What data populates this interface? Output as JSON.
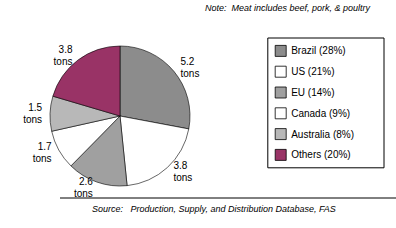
{
  "chart_data": {
    "type": "pie",
    "note": "Note:  Meat includes beef, pork, & poultry",
    "source": "Source:   Production, Supply, and Distribution Database, FAS",
    "categories": [
      "Brazil (28%)",
      "US (21%)",
      "EU (14%)",
      "Canada (9%)",
      "Australia (8%)",
      "Others (20%)"
    ],
    "values": [
      5.2,
      3.8,
      2.6,
      1.7,
      1.5,
      3.8
    ],
    "value_labels": [
      "5.2 tons",
      "3.8 tons",
      "2.6 tons",
      "1.7 tons",
      "1.5 tons",
      "3.8 tons"
    ],
    "colors": [
      "#8c8c8c",
      "#ffffff",
      "#a0a0a0",
      "#ffffff",
      "#b8b8b8",
      "#993366"
    ],
    "data_labels": true,
    "legend": "right"
  }
}
